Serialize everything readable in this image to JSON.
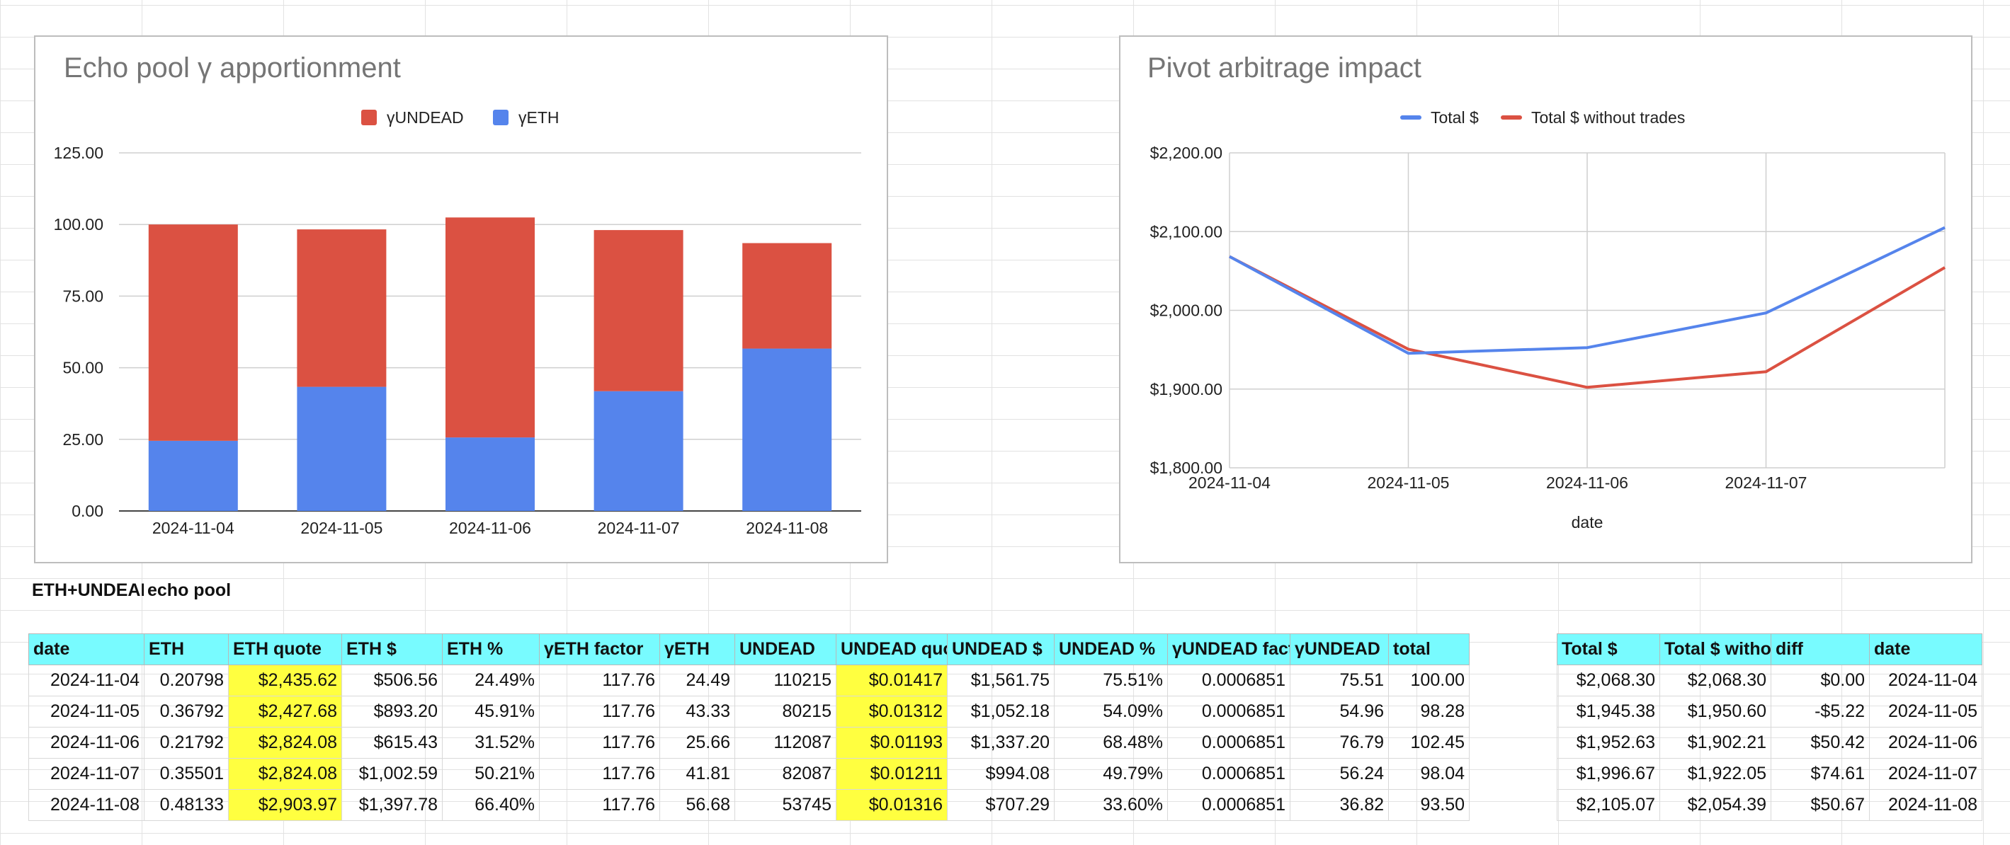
{
  "charts": [
    {
      "id": "apportionment",
      "title": "Echo pool γ apportionment",
      "legend": [
        "γUNDEAD",
        "γETH"
      ],
      "colors": {
        "γUNDEAD": "#db5142",
        "γETH": "#5584ec"
      }
    },
    {
      "id": "arbitrage",
      "title": "Pivot arbitrage impact",
      "legend": [
        "Total $",
        "Total $ without trades"
      ],
      "colors": {
        "Total $": "#5584ec",
        "Total $ without trades": "#db5142"
      }
    }
  ],
  "chart_data": [
    {
      "type": "bar",
      "stacked": true,
      "title": "Echo pool γ apportionment",
      "categories": [
        "2024-11-04",
        "2024-11-05",
        "2024-11-06",
        "2024-11-07",
        "2024-11-08"
      ],
      "series": [
        {
          "name": "γETH",
          "values": [
            24.49,
            43.33,
            25.66,
            41.81,
            56.68
          ]
        },
        {
          "name": "γUNDEAD",
          "values": [
            75.51,
            54.96,
            76.79,
            56.24,
            36.82
          ]
        }
      ],
      "ylim": [
        0,
        125
      ],
      "yticks": [
        "0.00",
        "25.00",
        "50.00",
        "75.00",
        "100.00",
        "125.00"
      ],
      "legend_position": "top",
      "grid": true
    },
    {
      "type": "line",
      "title": "Pivot arbitrage impact",
      "x": [
        "2024-11-04",
        "2024-11-05",
        "2024-11-06",
        "2024-11-07",
        "2024-11-08"
      ],
      "xticks": [
        "2024-11-04",
        "2024-11-05",
        "2024-11-06",
        "2024-11-07"
      ],
      "series": [
        {
          "name": "Total $",
          "values": [
            2068.3,
            1945.38,
            1952.63,
            1996.67,
            2105.07
          ]
        },
        {
          "name": "Total $ without trades",
          "values": [
            2068.3,
            1950.6,
            1902.21,
            1922.05,
            2054.39
          ]
        }
      ],
      "xlabel": "date",
      "ylim": [
        1800,
        2200
      ],
      "yticks": [
        "$1,800.00",
        "$1,900.00",
        "$2,000.00",
        "$2,100.00",
        "$2,200.00"
      ],
      "legend_position": "top",
      "grid": true
    }
  ],
  "labels": {
    "section_a": "ETH+UNDEAD",
    "section_b": "echo pool"
  },
  "main_table": {
    "headers": [
      "date",
      "ETH",
      "ETH quote",
      "ETH $",
      "ETH %",
      "γETH factor",
      "γETH",
      "UNDEAD",
      "UNDEAD quote",
      "UNDEAD $",
      "UNDEAD %",
      "γUNDEAD factor",
      "γUNDEAD",
      "total"
    ],
    "rows": [
      [
        "2024-11-04",
        "0.20798",
        "$2,435.62",
        "$506.56",
        "24.49%",
        "117.76",
        "24.49",
        "110215",
        "$0.01417",
        "$1,561.75",
        "75.51%",
        "0.0006851",
        "75.51",
        "100.00"
      ],
      [
        "2024-11-05",
        "0.36792",
        "$2,427.68",
        "$893.20",
        "45.91%",
        "117.76",
        "43.33",
        "80215",
        "$0.01312",
        "$1,052.18",
        "54.09%",
        "0.0006851",
        "54.96",
        "98.28"
      ],
      [
        "2024-11-06",
        "0.21792",
        "$2,824.08",
        "$615.43",
        "31.52%",
        "117.76",
        "25.66",
        "112087",
        "$0.01193",
        "$1,337.20",
        "68.48%",
        "0.0006851",
        "76.79",
        "102.45"
      ],
      [
        "2024-11-07",
        "0.35501",
        "$2,824.08",
        "$1,002.59",
        "50.21%",
        "117.76",
        "41.81",
        "82087",
        "$0.01211",
        "$994.08",
        "49.79%",
        "0.0006851",
        "56.24",
        "98.04"
      ],
      [
        "2024-11-08",
        "0.48133",
        "$2,903.97",
        "$1,397.78",
        "66.40%",
        "117.76",
        "56.68",
        "53745",
        "$0.01316",
        "$707.29",
        "33.60%",
        "0.0006851",
        "36.82",
        "93.50"
      ]
    ]
  },
  "side_table": {
    "headers": [
      "Total $",
      "Total $ without trades",
      "diff",
      "date"
    ],
    "rows": [
      [
        "$2,068.30",
        "$2,068.30",
        "$0.00",
        "2024-11-04"
      ],
      [
        "$1,945.38",
        "$1,950.60",
        "-$5.22",
        "2024-11-05"
      ],
      [
        "$1,952.63",
        "$1,902.21",
        "$50.42",
        "2024-11-06"
      ],
      [
        "$1,996.67",
        "$1,922.05",
        "$74.61",
        "2024-11-07"
      ],
      [
        "$2,105.07",
        "$2,054.39",
        "$50.67",
        "2024-11-08"
      ]
    ]
  },
  "colors": {
    "header_fill": "#78fbff",
    "highlight_fill": "#ffff40"
  }
}
